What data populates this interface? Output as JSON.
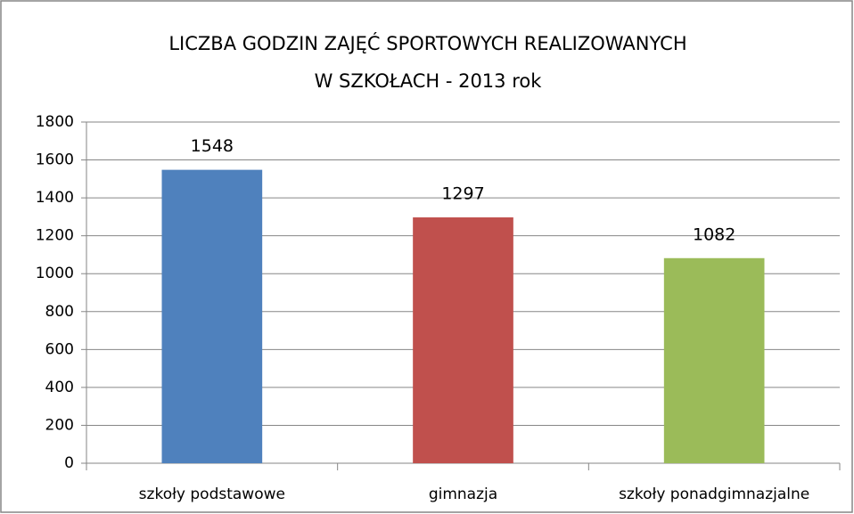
{
  "chart_data": {
    "type": "bar",
    "title": [
      "LICZBA GODZIN ZAJĘĆ SPORTOWYCH REALIZOWANYCH",
      "W SZKOŁACH - 2013 rok"
    ],
    "categories": [
      "szkoły podstawowe",
      "gimnazja",
      "szkoły ponadgimnazjalne"
    ],
    "values": [
      1548,
      1297,
      1082
    ],
    "colors": [
      "#4f81bd",
      "#c0504d",
      "#9bbb59"
    ],
    "ylim": [
      0,
      1800
    ],
    "yticks": [
      0,
      200,
      400,
      600,
      800,
      1000,
      1200,
      1400,
      1600,
      1800
    ],
    "grid": true
  }
}
